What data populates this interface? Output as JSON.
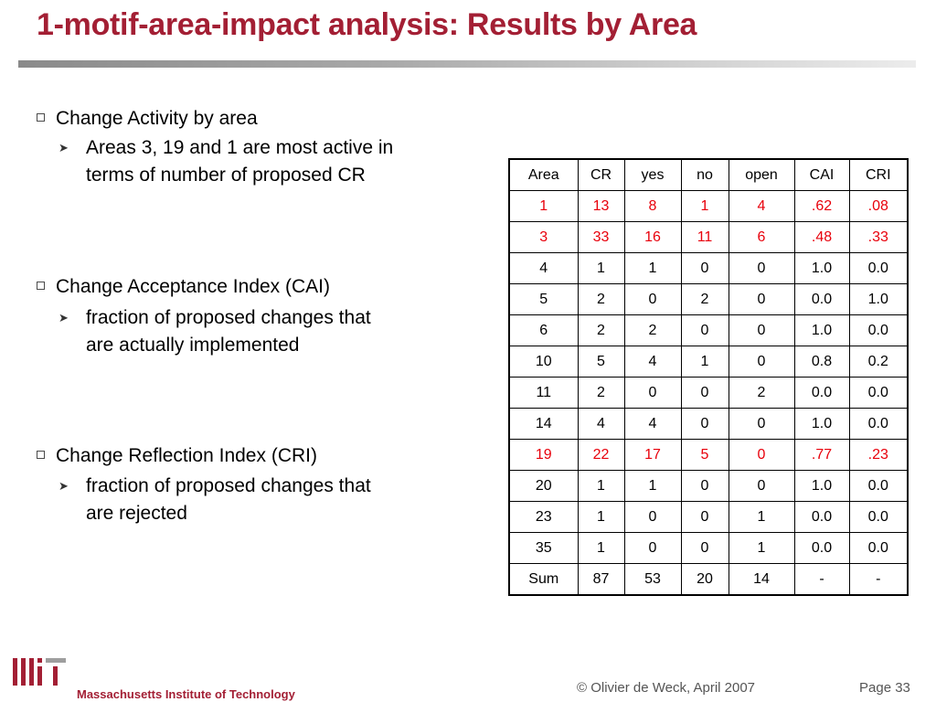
{
  "slide": {
    "title": "1-motif-area-impact analysis: Results by Area"
  },
  "bullets": [
    {
      "text": "Change Activity by area",
      "sub": [
        "Areas 3, 19 and 1 are most active in",
        "terms of number of proposed CR"
      ]
    },
    {
      "text": "Change Acceptance Index (CAI)",
      "sub": [
        "fraction of proposed changes that",
        "are actually implemented"
      ]
    },
    {
      "text": "Change Reflection Index (CRI)",
      "sub": [
        "fraction of proposed changes that",
        "are rejected"
      ]
    }
  ],
  "table": {
    "headers": [
      "Area",
      "CR",
      "yes",
      "no",
      "open",
      "CAI",
      "CRI"
    ],
    "rows": [
      [
        "1",
        "13",
        "8",
        "1",
        "4",
        ".62",
        ".08"
      ],
      [
        "3",
        "33",
        "16",
        "11",
        "6",
        ".48",
        ".33"
      ],
      [
        "4",
        "1",
        "1",
        "0",
        "0",
        "1.0",
        "0.0"
      ],
      [
        "5",
        "2",
        "0",
        "2",
        "0",
        "0.0",
        "1.0"
      ],
      [
        "6",
        "2",
        "2",
        "0",
        "0",
        "1.0",
        "0.0"
      ],
      [
        "10",
        "5",
        "4",
        "1",
        "0",
        "0.8",
        "0.2"
      ],
      [
        "11",
        "2",
        "0",
        "0",
        "2",
        "0.0",
        "0.0"
      ],
      [
        "14",
        "4",
        "4",
        "0",
        "0",
        "1.0",
        "0.0"
      ],
      [
        "19",
        "22",
        "17",
        "5",
        "0",
        ".77",
        ".23"
      ],
      [
        "20",
        "1",
        "1",
        "0",
        "0",
        "1.0",
        "0.0"
      ],
      [
        "23",
        "1",
        "0",
        "0",
        "1",
        "0.0",
        "0.0"
      ],
      [
        "35",
        "1",
        "0",
        "0",
        "1",
        "0.0",
        "0.0"
      ],
      [
        "Sum",
        "87",
        "53",
        "20",
        "14",
        "-",
        "-"
      ]
    ],
    "highlight_color": "#e8000b"
  },
  "footer": {
    "institution": "Massachusetts Institute of Technology",
    "copyright": "© Olivier de Weck, April 2007",
    "page": "Page 33"
  },
  "colors": {
    "title": "#a31f34",
    "accent_logo_dark": "#a31f34",
    "accent_logo_gray": "#9e9e9e"
  }
}
